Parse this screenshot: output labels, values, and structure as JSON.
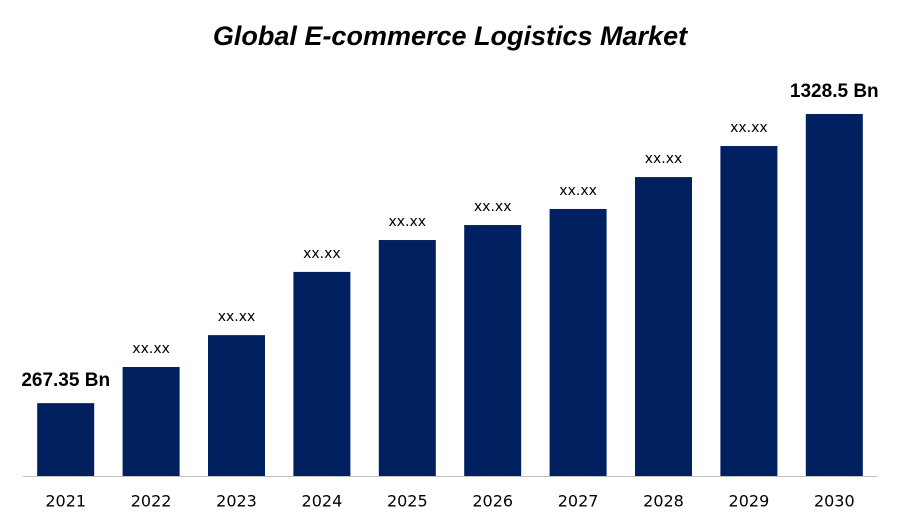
{
  "chart_data": {
    "type": "bar",
    "title": "Global E-commerce Logistics Market",
    "categories": [
      "2021",
      "2022",
      "2023",
      "2024",
      "2025",
      "2026",
      "2027",
      "2028",
      "2029",
      "2030"
    ],
    "values": [
      267.35,
      400,
      517,
      749,
      866,
      921,
      980,
      1097,
      1211,
      1328.5
    ],
    "value_labels": [
      "267.35 Bn",
      "xx.xx",
      "xx.xx",
      "xx.xx",
      "xx.xx",
      "xx.xx",
      "xx.xx",
      "xx.xx",
      "xx.xx",
      "1328.5 Bn"
    ],
    "color": "#002060"
  }
}
